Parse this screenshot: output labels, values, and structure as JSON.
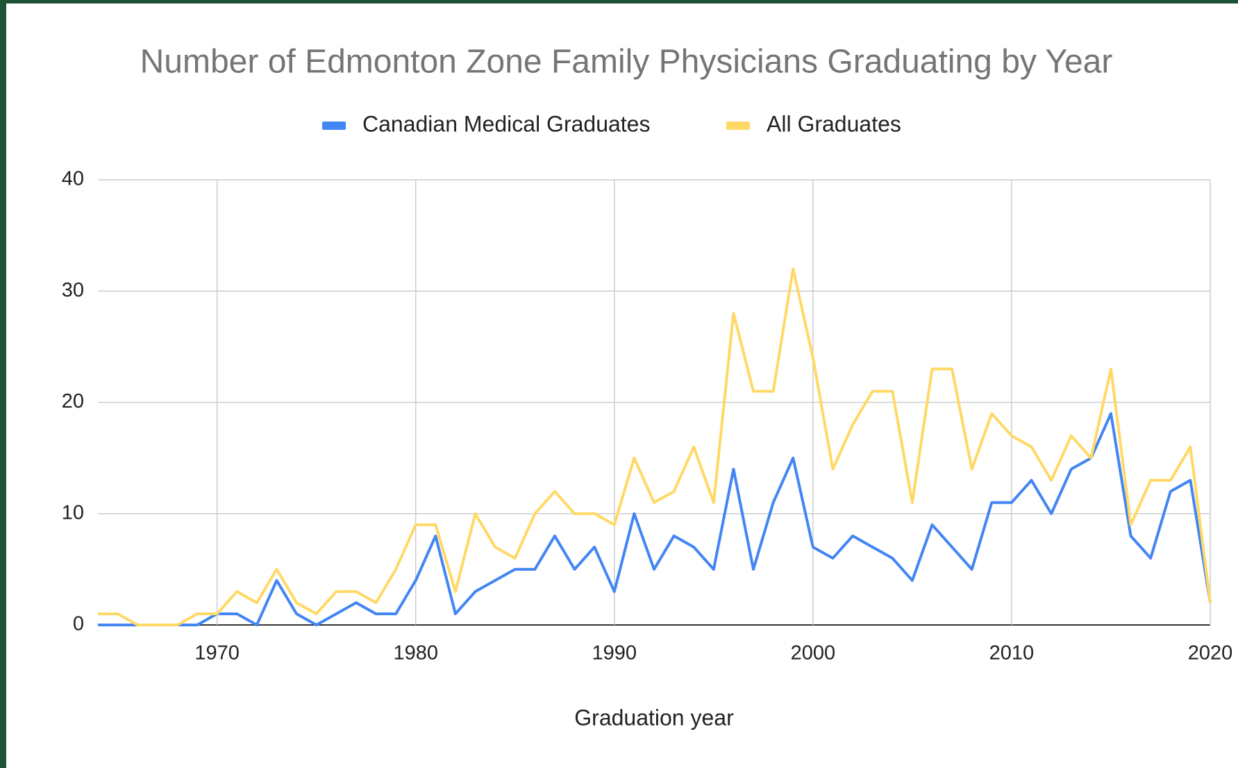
{
  "chart_data": {
    "type": "line",
    "title": "Number of Edmonton Zone Family Physicians Graduating by Year",
    "x_label": "Graduation year",
    "x": [
      1964,
      1965,
      1966,
      1967,
      1968,
      1969,
      1970,
      1971,
      1972,
      1973,
      1974,
      1975,
      1976,
      1977,
      1978,
      1979,
      1980,
      1981,
      1982,
      1983,
      1984,
      1985,
      1986,
      1987,
      1988,
      1989,
      1990,
      1991,
      1992,
      1993,
      1994,
      1995,
      1996,
      1997,
      1998,
      1999,
      2000,
      2001,
      2002,
      2003,
      2004,
      2005,
      2006,
      2007,
      2008,
      2009,
      2010,
      2011,
      2012,
      2013,
      2014,
      2015,
      2016,
      2017,
      2018,
      2019,
      2020
    ],
    "series": [
      {
        "name": "Canadian Medical Graduates",
        "color": "#4285f4",
        "values": [
          0,
          0,
          0,
          0,
          0,
          0,
          1,
          1,
          0,
          4,
          1,
          0,
          1,
          2,
          1,
          1,
          4,
          8,
          1,
          3,
          4,
          5,
          5,
          8,
          5,
          7,
          3,
          10,
          5,
          8,
          7,
          5,
          14,
          5,
          11,
          15,
          7,
          6,
          8,
          7,
          6,
          4,
          9,
          7,
          5,
          11,
          11,
          13,
          10,
          14,
          15,
          19,
          8,
          6,
          12,
          13,
          2
        ]
      },
      {
        "name": "All Graduates",
        "color": "#ffd966",
        "values": [
          1,
          1,
          0,
          0,
          0,
          1,
          1,
          3,
          2,
          5,
          2,
          1,
          3,
          3,
          2,
          5,
          9,
          9,
          3,
          10,
          7,
          6,
          10,
          12,
          10,
          10,
          9,
          15,
          11,
          12,
          16,
          11,
          28,
          21,
          21,
          32,
          24,
          14,
          18,
          21,
          21,
          11,
          23,
          23,
          14,
          19,
          17,
          16,
          13,
          17,
          15,
          23,
          9,
          13,
          13,
          16,
          2
        ]
      }
    ],
    "xlim": [
      1964,
      2020
    ],
    "xticks": [
      1970,
      1980,
      1990,
      2000,
      2010,
      2020
    ],
    "ylim": [
      0,
      40
    ],
    "yticks": [
      0,
      10,
      20,
      30,
      40
    ],
    "grid": true,
    "legend": "top"
  }
}
